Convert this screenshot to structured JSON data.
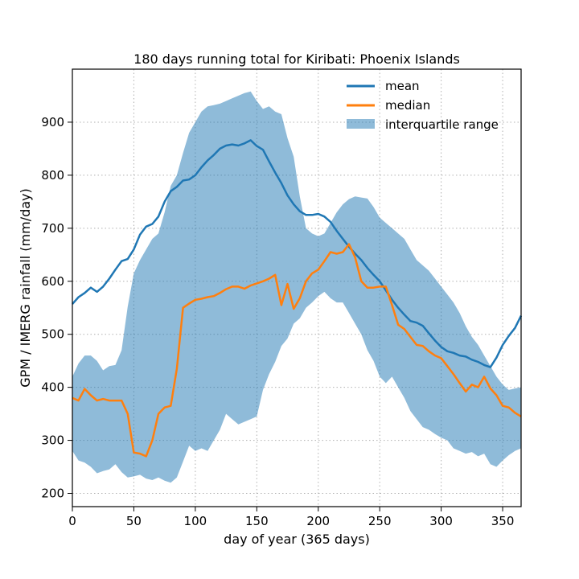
{
  "chart_data": {
    "type": "line",
    "title": "180 days running total for Kiribati: Phoenix Islands",
    "xlabel": "day of year (365 days)",
    "ylabel": "GPM / IMERG rainfall (mm/day)",
    "xlim": [
      0,
      365
    ],
    "ylim": [
      175,
      1000
    ],
    "xticks": [
      0,
      50,
      100,
      150,
      200,
      250,
      300,
      350
    ],
    "yticks": [
      200,
      300,
      400,
      500,
      600,
      700,
      800,
      900
    ],
    "grid": true,
    "legend_position": "top-right",
    "x": [
      0,
      5,
      10,
      15,
      20,
      25,
      30,
      35,
      40,
      45,
      50,
      55,
      60,
      65,
      70,
      75,
      80,
      85,
      90,
      95,
      100,
      105,
      110,
      115,
      120,
      125,
      130,
      135,
      140,
      145,
      150,
      155,
      160,
      165,
      170,
      175,
      180,
      185,
      190,
      195,
      200,
      205,
      210,
      215,
      220,
      225,
      230,
      235,
      240,
      245,
      250,
      255,
      260,
      265,
      270,
      275,
      280,
      285,
      290,
      295,
      300,
      305,
      310,
      315,
      320,
      325,
      330,
      335,
      340,
      345,
      350,
      355,
      360,
      365
    ],
    "series": [
      {
        "name": "mean",
        "color": "#1f77b4",
        "values": [
          557,
          570,
          578,
          588,
          580,
          590,
          605,
          622,
          638,
          642,
          660,
          688,
          703,
          708,
          722,
          750,
          770,
          778,
          790,
          792,
          800,
          815,
          828,
          838,
          850,
          856,
          858,
          856,
          860,
          866,
          855,
          848,
          826,
          805,
          785,
          762,
          745,
          732,
          725,
          725,
          727,
          722,
          712,
          695,
          680,
          665,
          652,
          640,
          625,
          612,
          600,
          583,
          565,
          550,
          537,
          525,
          522,
          516,
          502,
          488,
          476,
          468,
          465,
          460,
          458,
          452,
          448,
          442,
          438,
          456,
          480,
          497,
          512,
          535
        ]
      },
      {
        "name": "median",
        "color": "#ff7f0e",
        "values": [
          380,
          375,
          397,
          385,
          375,
          378,
          375,
          375,
          375,
          350,
          277,
          275,
          270,
          300,
          350,
          362,
          365,
          435,
          550,
          558,
          565,
          567,
          570,
          572,
          578,
          585,
          590,
          590,
          586,
          592,
          596,
          600,
          605,
          612,
          555,
          595,
          548,
          568,
          600,
          615,
          622,
          638,
          655,
          652,
          655,
          670,
          645,
          600,
          588,
          588,
          590,
          590,
          555,
          518,
          510,
          495,
          480,
          478,
          468,
          460,
          455,
          440,
          425,
          408,
          392,
          405,
          400,
          420,
          398,
          385,
          365,
          362,
          352,
          345
        ]
      }
    ],
    "band": {
      "name": "interquartile range",
      "color": "#1f77b4",
      "opacity": 0.5,
      "lower": [
        280,
        262,
        258,
        250,
        238,
        242,
        245,
        255,
        240,
        230,
        232,
        235,
        228,
        225,
        230,
        224,
        220,
        230,
        260,
        290,
        280,
        285,
        280,
        300,
        320,
        350,
        340,
        330,
        335,
        340,
        345,
        395,
        425,
        448,
        478,
        492,
        520,
        530,
        550,
        560,
        572,
        580,
        568,
        560,
        560,
        540,
        520,
        500,
        470,
        450,
        420,
        408,
        420,
        400,
        380,
        355,
        340,
        325,
        320,
        312,
        305,
        300,
        285,
        280,
        275,
        278,
        270,
        275,
        255,
        250,
        262,
        272,
        280,
        285
      ],
      "upper": [
        420,
        445,
        460,
        460,
        450,
        432,
        440,
        442,
        470,
        552,
        615,
        640,
        660,
        680,
        690,
        730,
        780,
        800,
        842,
        880,
        900,
        920,
        930,
        932,
        935,
        940,
        945,
        950,
        955,
        958,
        940,
        925,
        930,
        920,
        915,
        870,
        835,
        760,
        700,
        690,
        685,
        690,
        710,
        730,
        745,
        755,
        760,
        758,
        756,
        740,
        720,
        710,
        700,
        690,
        680,
        660,
        640,
        630,
        620,
        605,
        590,
        575,
        560,
        540,
        515,
        495,
        480,
        460,
        440,
        420,
        405,
        395,
        398,
        400
      ]
    }
  }
}
